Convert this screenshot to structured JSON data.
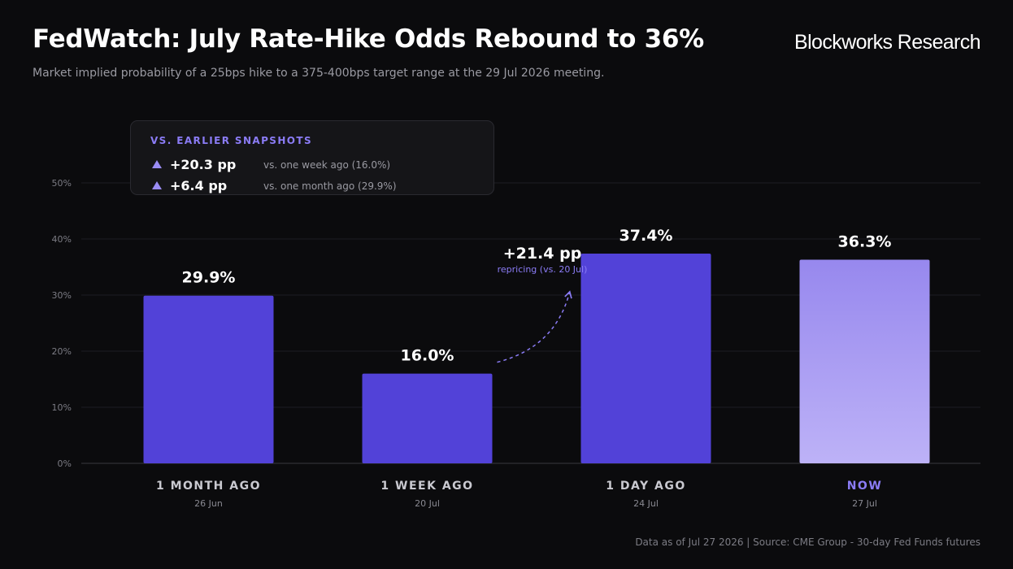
{
  "header": {
    "title": "FedWatch: July Rate-Hike Odds Rebound to 36%",
    "subtitle": "Market implied probability of a 25bps hike to a 375-400bps target range at the 29 Jul 2026 meeting.",
    "brand": "Blockworks Research"
  },
  "snapshots": {
    "title": "VS. EARLIER SNAPSHOTS",
    "rows": [
      {
        "delta": "+20.3 pp",
        "desc": "vs. one week ago (16.0%)"
      },
      {
        "delta": "+6.4 pp",
        "desc": "vs. one month ago (29.9%)"
      }
    ]
  },
  "annotation": {
    "value": "+21.4 pp",
    "note": "repricing (vs. 20 Jul)",
    "from_index": 1,
    "to_index": 2
  },
  "colors": {
    "bar": "#5242d8",
    "highlight_top": "#9788ee",
    "highlight_bottom": "#bdb2f7",
    "accent": "#8b7cf6",
    "grid": "#1e1e22",
    "axis": "#3a3a40"
  },
  "chart_data": {
    "type": "bar",
    "categories": [
      "1 MONTH AGO",
      "1 WEEK AGO",
      "1 DAY AGO",
      "NOW"
    ],
    "dates": [
      "26 Jun",
      "20 Jul",
      "24 Jul",
      "27 Jul"
    ],
    "values": [
      29.9,
      16.0,
      37.4,
      36.3
    ],
    "value_labels": [
      "29.9%",
      "16.0%",
      "37.4%",
      "36.3%"
    ],
    "highlight_index": 3,
    "ylim": [
      0,
      50
    ],
    "yticks": [
      0,
      10,
      20,
      30,
      40,
      50
    ],
    "ytick_labels": [
      "0%",
      "10%",
      "20%",
      "30%",
      "40%",
      "50%"
    ],
    "grid": true
  },
  "footer": "Data as of Jul 27 2026 | Source: CME Group - 30-day Fed Funds futures"
}
